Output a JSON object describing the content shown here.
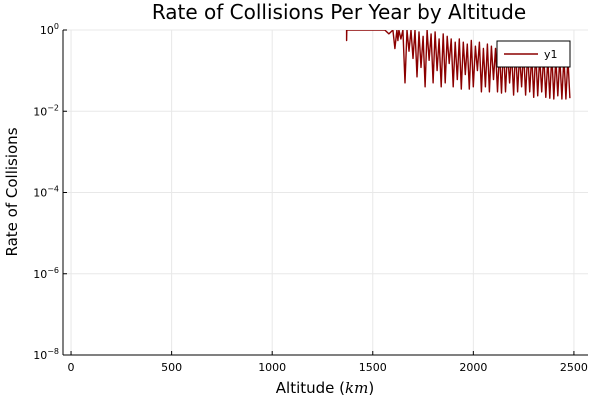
{
  "chart_data": {
    "type": "line",
    "title": "Rate of Collisions Per Year by Altitude",
    "xlabel": "Altitude",
    "xlabel_unit": "km",
    "ylabel": "Rate of Collisions",
    "xlim": [
      -40,
      2570
    ],
    "ylim": [
      1e-08,
      1
    ],
    "yscale": "log",
    "x_ticks": [
      0,
      500,
      1000,
      1500,
      2000,
      2500
    ],
    "y_ticks": [
      {
        "base": "10",
        "exp": "−8",
        "value": 1e-08
      },
      {
        "base": "10",
        "exp": "−6",
        "value": 1e-06
      },
      {
        "base": "10",
        "exp": "−4",
        "value": 0.0001
      },
      {
        "base": "10",
        "exp": "−2",
        "value": 0.01
      },
      {
        "base": "10",
        "exp": "0",
        "value": 1
      }
    ],
    "grid": true,
    "legend_position": "top-right",
    "series": [
      {
        "name": "y1",
        "color": "#8b0000",
        "x": [
          1370,
          1370,
          1371,
          1372,
          1400,
          1420,
          1450,
          1480,
          1500,
          1530,
          1560,
          1580,
          1600,
          1610,
          1620,
          1625,
          1630,
          1640,
          1650,
          1660,
          1670,
          1680,
          1690,
          1700,
          1710,
          1720,
          1730,
          1740,
          1750,
          1760,
          1770,
          1780,
          1790,
          1800,
          1810,
          1820,
          1830,
          1840,
          1850,
          1860,
          1870,
          1880,
          1890,
          1900,
          1910,
          1920,
          1930,
          1940,
          1950,
          1960,
          1970,
          1980,
          1990,
          2000,
          2010,
          2020,
          2030,
          2040,
          2050,
          2060,
          2070,
          2080,
          2090,
          2100,
          2110,
          2120,
          2130,
          2140,
          2150,
          2160,
          2170,
          2180,
          2190,
          2200,
          2210,
          2220,
          2230,
          2240,
          2250,
          2260,
          2270,
          2280,
          2290,
          2300,
          2310,
          2320,
          2330,
          2340,
          2350,
          2360,
          2370,
          2380,
          2390,
          2400,
          2410,
          2420,
          2430,
          2440,
          2450,
          2460,
          2470,
          2480
        ],
        "y": [
          1,
          0.55,
          1,
          1,
          1,
          1,
          1,
          1,
          1,
          1,
          1,
          0.8,
          1,
          0.35,
          1,
          0.55,
          1,
          0.6,
          1,
          0.05,
          1,
          0.3,
          1,
          0.2,
          1,
          0.07,
          0.9,
          0.12,
          0.7,
          0.04,
          1,
          0.18,
          0.8,
          0.05,
          0.9,
          0.1,
          0.6,
          0.04,
          0.8,
          0.05,
          0.7,
          0.15,
          0.6,
          0.04,
          0.5,
          0.06,
          0.6,
          0.035,
          0.5,
          0.08,
          0.45,
          0.035,
          0.55,
          0.04,
          0.4,
          0.1,
          0.5,
          0.03,
          0.35,
          0.04,
          0.45,
          0.03,
          0.4,
          0.06,
          0.35,
          0.03,
          0.3,
          0.028,
          0.4,
          0.03,
          0.3,
          0.05,
          0.28,
          0.025,
          0.35,
          0.03,
          0.25,
          0.04,
          0.3,
          0.025,
          0.28,
          0.03,
          0.25,
          0.022,
          0.3,
          0.024,
          0.22,
          0.03,
          0.25,
          0.022,
          0.2,
          0.021,
          0.26,
          0.02,
          0.2,
          0.024,
          0.21,
          0.02,
          0.22,
          0.02,
          0.2,
          0.021
        ]
      }
    ]
  }
}
